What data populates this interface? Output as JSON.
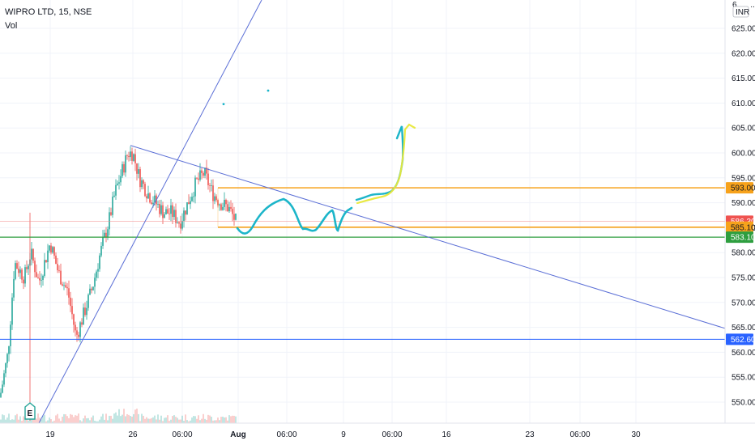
{
  "header": {
    "title": "WIPRO LTD, 15, NSE",
    "indicator": "Vol"
  },
  "axis": {
    "currency_top": "6.. .. ..",
    "currency": "INR",
    "earnings_marker": "E"
  },
  "colors": {
    "up": "#26a69a",
    "down": "#ef5350",
    "trend": "#5b6fd6",
    "orange": "#f7a21b",
    "green": "#2e9e3f",
    "blue": "#2962ff",
    "cyan": "#1cb5c9",
    "yellow": "#e8e83a",
    "red_line": "#f28b8b"
  },
  "chart_data": {
    "type": "candlestick",
    "y_range": [
      546,
      631
    ],
    "y_ticks": [
      550,
      555,
      560,
      565,
      570,
      575,
      580,
      585,
      590,
      595,
      600,
      605,
      610,
      615,
      620,
      625
    ],
    "y_tick_labels": [
      "550.00",
      "555.00",
      "560.00",
      "565.00",
      "570.00",
      "575.00",
      "580.00",
      "585.00",
      "590.00",
      "595.00",
      "600.00",
      "605.00",
      "610.00",
      "615.00",
      "620.00",
      "625.00"
    ],
    "x_labels": [
      "19",
      "26",
      "06:00",
      "Aug",
      "06:00",
      "9",
      "06:00",
      "16",
      "23",
      "06:00",
      "30"
    ],
    "price_levels": [
      {
        "label": "593.00",
        "value": 593.0,
        "color": "orange"
      },
      {
        "label": "586.30",
        "value": 586.3,
        "color": "red"
      },
      {
        "label": "585.10",
        "value": 585.1,
        "color": "orange"
      },
      {
        "label": "583.10",
        "value": 583.1,
        "color": "green"
      },
      {
        "label": "562.60",
        "value": 562.6,
        "color": "blue"
      }
    ],
    "trend_lines": [
      {
        "from": [
          "Jul 17",
          546
        ],
        "to": [
          "Jul 26 15:00",
          631
        ],
        "color": "blue"
      },
      {
        "from": [
          "Jul 26",
          601.5
        ],
        "to": [
          "Aug 30+",
          564.8
        ],
        "color": "blue"
      }
    ],
    "drawn_path_points": [
      [
        585.4,
        "Jul 31"
      ],
      [
        588.5,
        "Aug 3"
      ],
      [
        590.5,
        "Aug 4"
      ],
      [
        585.0,
        "Aug 6"
      ],
      [
        588.5,
        "Aug 8"
      ],
      [
        588.0,
        "Aug 9"
      ],
      [
        590.0,
        "Aug 10"
      ],
      [
        593.5,
        "Aug 12"
      ],
      [
        605.0,
        "Aug 13"
      ]
    ],
    "highlighted_path_points": [
      [
        590.0,
        "Aug 10"
      ],
      [
        592.5,
        "Aug 12"
      ],
      [
        605.0,
        "Aug 13"
      ]
    ]
  }
}
